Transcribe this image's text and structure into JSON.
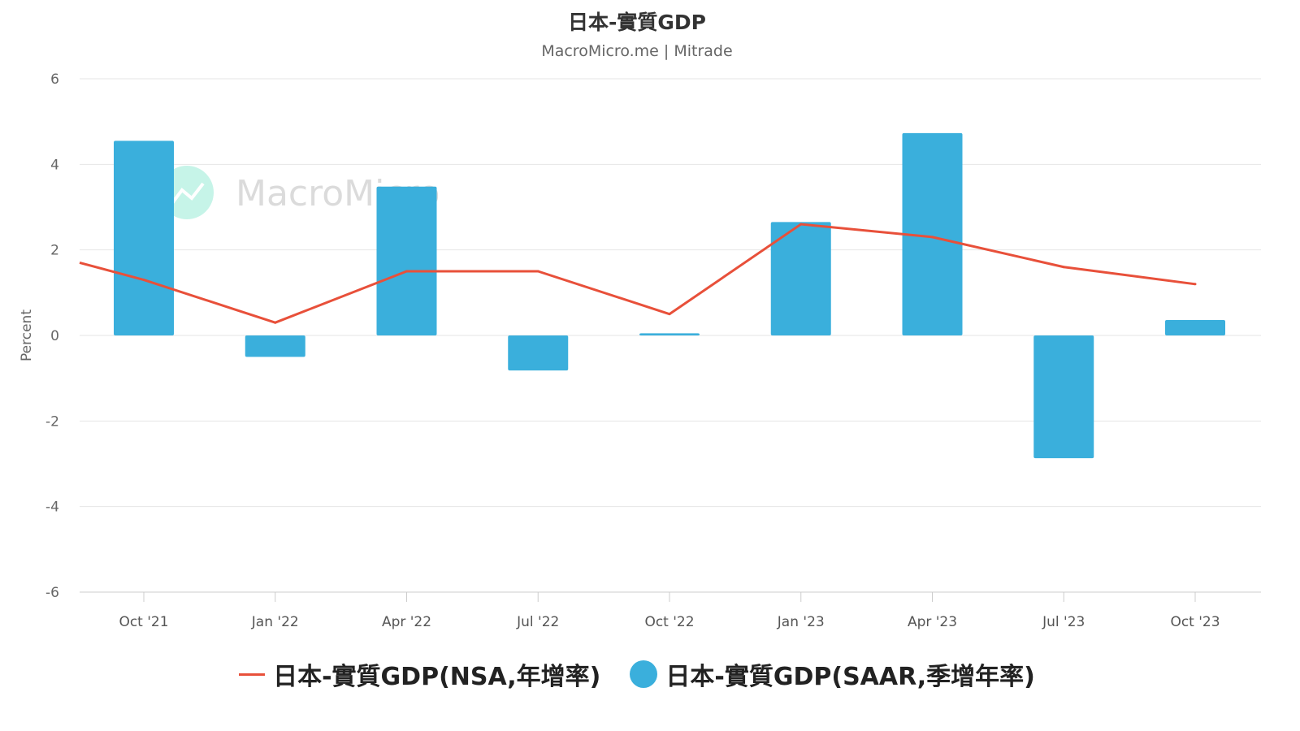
{
  "chart_data": {
    "type": "bar",
    "title": "日本-實質GDP",
    "subtitle": "MacroMicro.me | Mitrade",
    "watermark": "MacroMicro",
    "ylabel": "Percent",
    "xlabel": "",
    "ylim": [
      -6,
      6
    ],
    "yticks": [
      6,
      4,
      2,
      0,
      -2,
      -4,
      -6
    ],
    "grid": true,
    "legend_position": "bottom",
    "categories": [
      "Oct '21",
      "Jan '22",
      "Apr '22",
      "Jul '22",
      "Oct '22",
      "Jan '23",
      "Apr '23",
      "Jul '23",
      "Oct '23"
    ],
    "series": [
      {
        "name": "日本-實質GDP(NSA,年增率)",
        "kind": "line",
        "color": "#e8503a",
        "values": [
          1.3,
          0.3,
          1.5,
          1.5,
          0.5,
          2.6,
          2.3,
          1.6,
          1.2
        ],
        "start_value": 1.7
      },
      {
        "name": "日本-實質GDP(SAAR,季增年率)",
        "kind": "bar",
        "color": "#3aafdc",
        "values": [
          4.55,
          -0.5,
          3.48,
          -0.82,
          0.05,
          2.65,
          4.73,
          -2.87,
          0.36
        ]
      }
    ]
  }
}
